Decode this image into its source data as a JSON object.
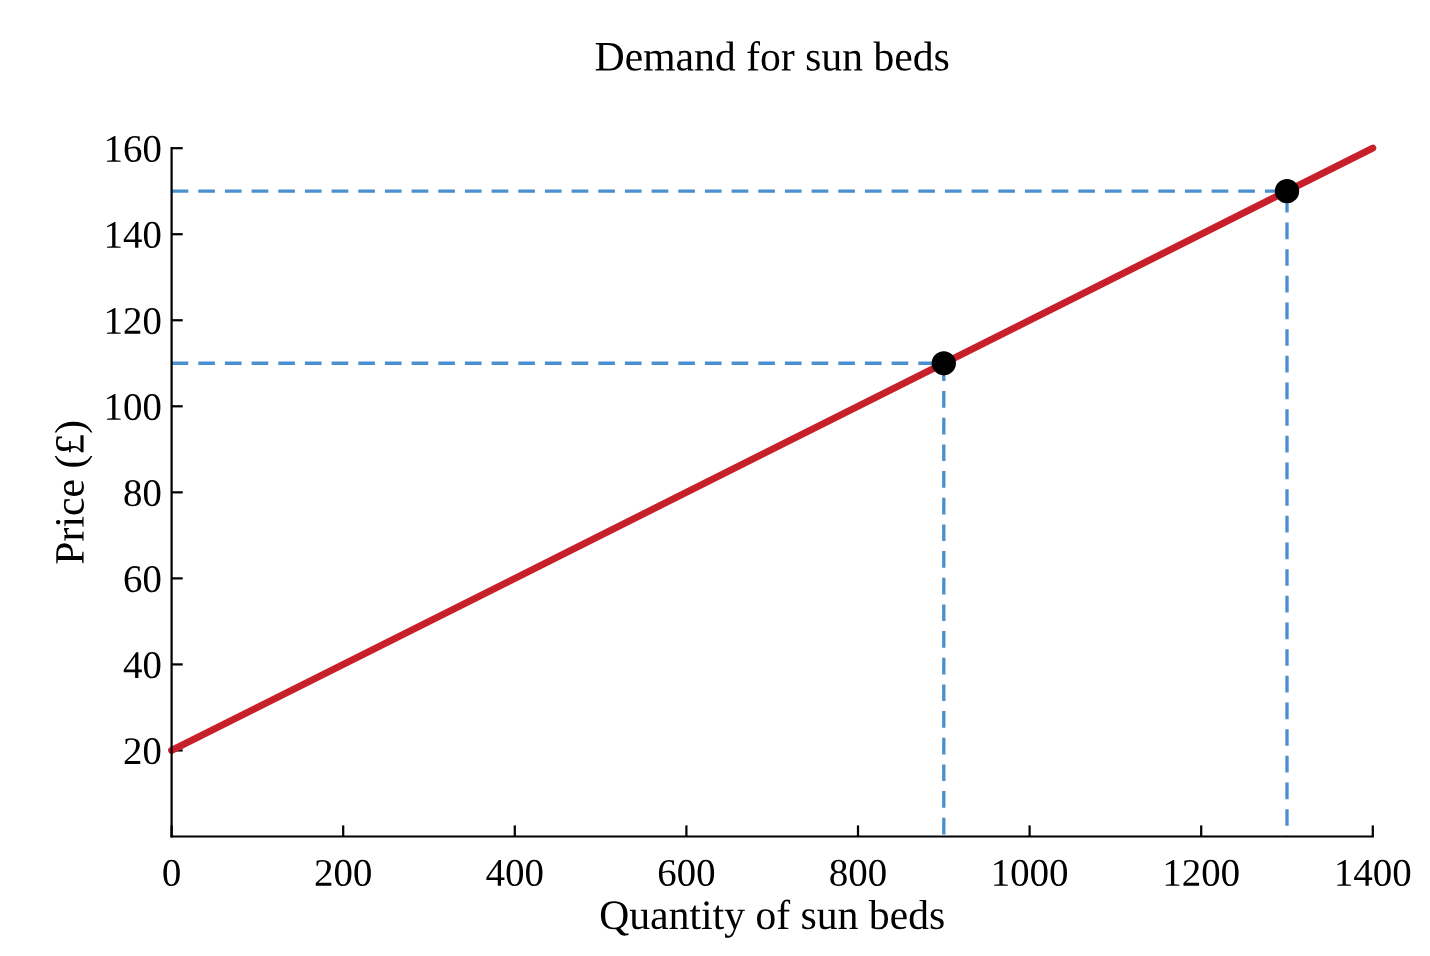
{
  "chart_data": {
    "type": "line",
    "title": "Demand for sun beds",
    "xlabel": "Quantity of sun beds",
    "ylabel": "Price (£)",
    "xlim": [
      0,
      1400
    ],
    "ylim": [
      0,
      160
    ],
    "xticks": [
      0,
      200,
      400,
      600,
      800,
      1000,
      1200,
      1400
    ],
    "yticks": [
      20,
      40,
      60,
      80,
      100,
      120,
      140,
      160
    ],
    "grid": false,
    "legend": false,
    "series": [
      {
        "color": "#4a90d0",
        "line_style": "dashed",
        "x": [
          0,
          900,
          900
        ],
        "values": [
          110,
          110,
          0
        ]
      },
      {
        "color": "#4a90d0",
        "line_style": "dashed",
        "x": [
          0,
          1300,
          1300
        ],
        "values": [
          150,
          150,
          0
        ]
      },
      {
        "color": "#c8202a",
        "line_style": "solid",
        "x": [
          0,
          1400
        ],
        "values": [
          20,
          160
        ]
      },
      {
        "type": "scatter",
        "color": "#000000",
        "marker": "circle",
        "x": [
          900,
          1300
        ],
        "values": [
          110,
          150
        ]
      }
    ]
  }
}
